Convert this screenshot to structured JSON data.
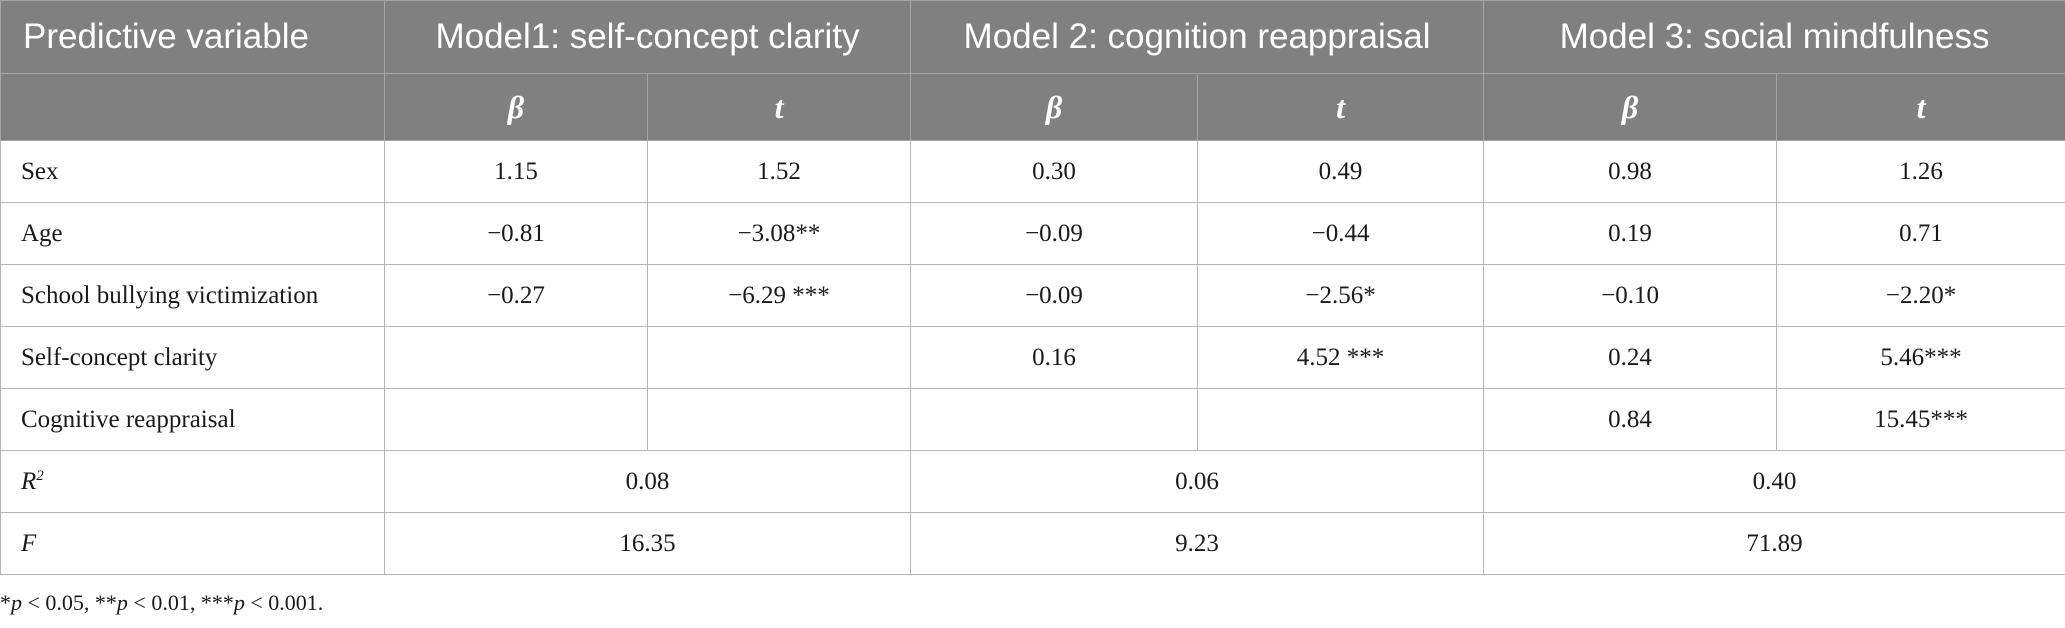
{
  "header": {
    "variable": "Predictive variable",
    "models": [
      "Model1: self-concept clarity",
      "Model 2: cognition reappraisal",
      "Model 3: social mindfulness"
    ],
    "beta": "β",
    "t": "t"
  },
  "rows": [
    {
      "label": "Sex",
      "values": [
        "1.15",
        "1.52",
        "0.30",
        "0.49",
        "0.98",
        "1.26"
      ]
    },
    {
      "label": "Age",
      "values": [
        "−0.81",
        "−3.08**",
        "−0.09",
        "−0.44",
        "0.19",
        "0.71"
      ]
    },
    {
      "label": "School bullying victimization",
      "values": [
        "−0.27",
        "−6.29 ***",
        "−0.09",
        "−2.56*",
        "−0.10",
        "−2.20*"
      ]
    },
    {
      "label": "Self-concept clarity",
      "values": [
        "",
        "",
        "0.16",
        "4.52 ***",
        "0.24",
        "5.46***"
      ]
    },
    {
      "label": "Cognitive reappraisal",
      "values": [
        "",
        "",
        "",
        "",
        "0.84",
        "15.45***"
      ]
    }
  ],
  "summary": [
    {
      "label": "R",
      "sup": "2",
      "values": [
        "0.08",
        "0.06",
        "0.40"
      ]
    },
    {
      "label": "F",
      "values": [
        "16.35",
        "9.23",
        "71.89"
      ]
    }
  ],
  "footnote": {
    "p1": "p",
    "t1": " < 0.05, **",
    "p2": "p",
    "t2": " < 0.01, ***",
    "p3": "p",
    "t3": " < 0.001."
  }
}
